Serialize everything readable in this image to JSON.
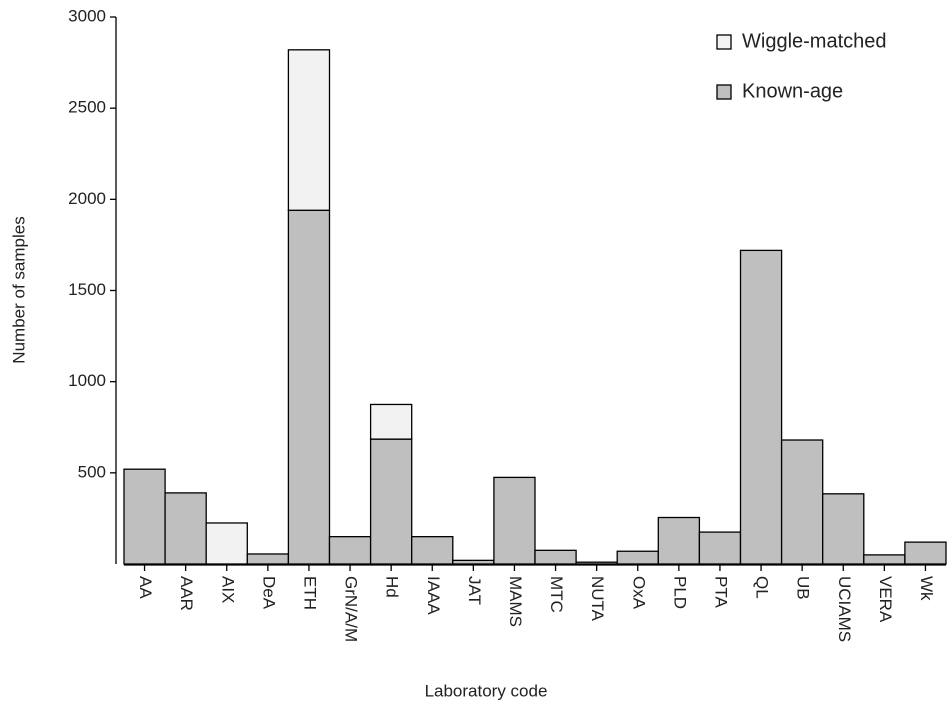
{
  "chart_data": {
    "type": "stacked_bar",
    "x_label": "Laboratory code",
    "y_label": "Number of samples",
    "categories": [
      "AA",
      "AAR",
      "AIX",
      "DeA",
      "ETH",
      "GrN/A/M",
      "Hd",
      "IAAA",
      "JAT",
      "MAMS",
      "MTC",
      "NUTA",
      "OxA",
      "PLD",
      "PTA",
      "QL",
      "UB",
      "UCIAMS",
      "VERA",
      "Wk"
    ],
    "series": [
      {
        "name": "Known-age",
        "color": "#bfbfbf",
        "values": [
          520,
          390,
          0,
          55,
          1940,
          150,
          685,
          150,
          20,
          475,
          75,
          10,
          70,
          255,
          175,
          1720,
          680,
          385,
          50,
          120
        ]
      },
      {
        "name": "Wiggle-matched",
        "color": "#f2f2f2",
        "values": [
          0,
          0,
          225,
          0,
          880,
          0,
          190,
          0,
          0,
          0,
          0,
          0,
          0,
          0,
          0,
          0,
          0,
          0,
          0,
          0
        ]
      }
    ],
    "ylim": [
      0,
      3000
    ],
    "yticks": [
      500,
      1000,
      1500,
      2000,
      2500,
      3000
    ],
    "legend": "top-right"
  }
}
